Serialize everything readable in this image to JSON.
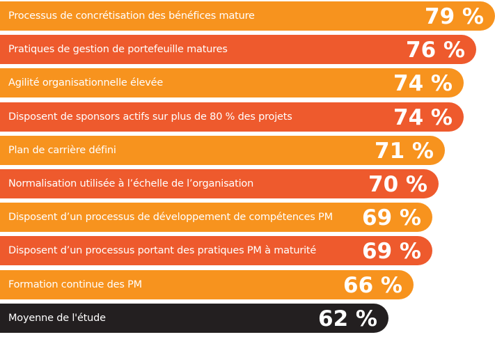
{
  "colors": {
    "orange": "#f7931e",
    "red": "#ee5a2d",
    "dark": "#231f20"
  },
  "chart_data": {
    "type": "bar",
    "orientation": "horizontal",
    "categories": [
      "Processus de concrétisation des bénéfices mature",
      "Pratiques de gestion de portefeuille matures",
      "Agilité organisationnelle élevée",
      "Disposent de sponsors actifs sur plus de 80 % des projets",
      "Plan de carrière défini",
      "Normalisation utilisée à l’échelle de l’organisation",
      "Disposent d’un processus de développement de compétences PM",
      "Disposent d’un processus portant des pratiques PM à maturité",
      "Formation continue des PM",
      "Moyenne de l'étude"
    ],
    "values": [
      79,
      76,
      74,
      74,
      71,
      70,
      69,
      69,
      66,
      62
    ],
    "value_labels": [
      "79 %",
      "76 %",
      "74 %",
      "74 %",
      "71 %",
      "70 %",
      "69 %",
      "69 %",
      "66 %",
      "62 %"
    ],
    "bar_colors": [
      "orange",
      "red",
      "orange",
      "red",
      "orange",
      "red",
      "orange",
      "red",
      "orange",
      "dark"
    ],
    "title": "",
    "xlabel": "",
    "ylabel": "",
    "grid": false,
    "legend": "none"
  }
}
